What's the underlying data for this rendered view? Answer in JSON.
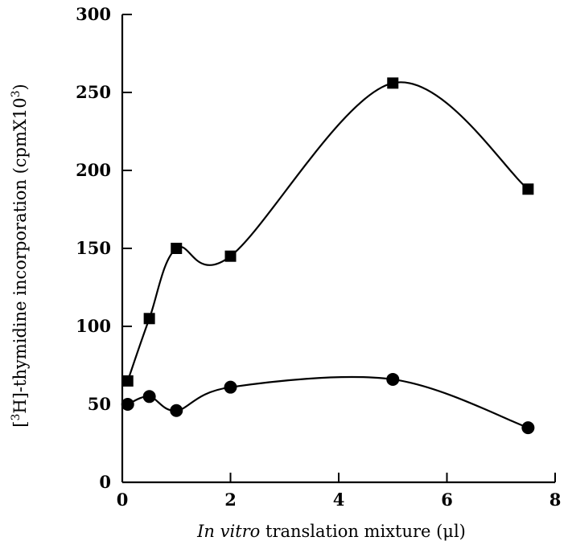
{
  "chart_data": {
    "type": "line",
    "title": "",
    "xlabel": {
      "italic_part": "In vitro",
      "rest": " translation mixture (μl)"
    },
    "ylabel": {
      "prefix": "[",
      "superscript": "3",
      "main": "H]-thymidine incorporation (cpmX10",
      "superscript_end": "3",
      "suffix": ")"
    },
    "xlim": [
      0,
      8
    ],
    "ylim": [
      0,
      300
    ],
    "x_ticks": [
      "0",
      "2",
      "4",
      "6",
      "8"
    ],
    "y_ticks": [
      "0",
      "50",
      "100",
      "150",
      "200",
      "250",
      "300"
    ],
    "grid": false,
    "legend": "none",
    "series": [
      {
        "marker": "square",
        "color": "#000000",
        "x": [
          0.1,
          0.5,
          1.0,
          2.0,
          5.0,
          7.5
        ],
        "y": [
          65,
          105,
          150,
          145,
          256,
          188
        ]
      },
      {
        "marker": "circle",
        "color": "#000000",
        "x": [
          0.1,
          0.5,
          1.0,
          2.0,
          5.0,
          7.5
        ],
        "y": [
          50,
          55,
          46,
          61,
          66,
          35
        ]
      }
    ]
  }
}
